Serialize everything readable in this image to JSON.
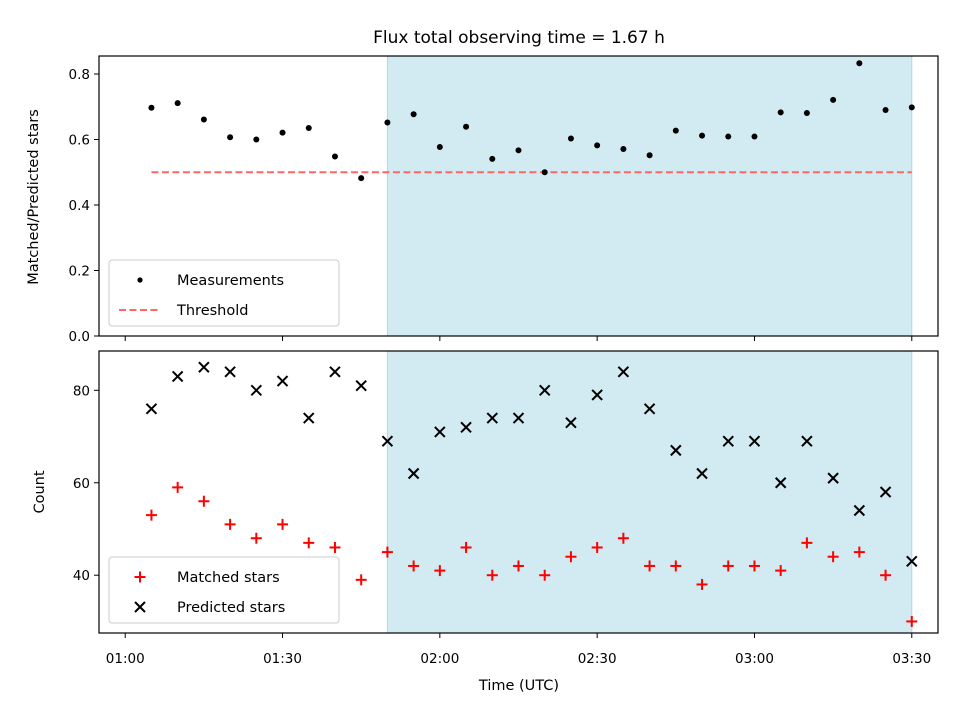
{
  "chart_data": [
    {
      "type": "scatter",
      "title": "Flux total observing time = 1.67 h",
      "xlabel": "",
      "ylabel": "Matched/Predicted stars",
      "ylim": [
        0,
        0.855
      ],
      "yticks": [
        "0.0",
        "0.2",
        "0.4",
        "0.6",
        "0.8"
      ],
      "ytick_values": [
        0,
        0.2,
        0.4,
        0.6,
        0.8
      ],
      "xlim_minutes": [
        55,
        215
      ],
      "shaded_span_minutes": [
        110,
        210
      ],
      "shade_color": "#add8e6",
      "legend": {
        "placement": "lower-left",
        "entries": [
          "Measurements",
          "Threshold"
        ]
      },
      "threshold": {
        "name": "Threshold",
        "value": 0.5,
        "x_range_minutes": [
          65,
          210
        ],
        "color": "#ff6666",
        "style": "dashed"
      },
      "series": [
        {
          "name": "Measurements",
          "marker": "dot",
          "color": "#000000",
          "x_minutes": [
            65,
            70,
            75,
            80,
            85,
            90,
            95,
            100,
            105,
            110,
            115,
            120,
            125,
            130,
            135,
            140,
            145,
            150,
            155,
            160,
            165,
            170,
            175,
            180,
            185,
            190,
            195,
            200,
            205,
            210
          ],
          "values": [
            0.697,
            0.711,
            0.661,
            0.607,
            0.6,
            0.621,
            0.635,
            0.548,
            0.482,
            0.652,
            0.677,
            0.577,
            0.639,
            0.541,
            0.567,
            0.5,
            0.603,
            0.582,
            0.571,
            0.552,
            0.627,
            0.612,
            0.609,
            0.609,
            0.683,
            0.681,
            0.721,
            0.833,
            0.69,
            0.698
          ]
        }
      ]
    },
    {
      "type": "scatter",
      "title": "",
      "xlabel": "Time (UTC)",
      "ylabel": "Count",
      "ylim": [
        27.5,
        88.5
      ],
      "yticks": [
        "40",
        "60",
        "80"
      ],
      "ytick_values": [
        40,
        60,
        80
      ],
      "xlim_minutes": [
        55,
        215
      ],
      "xticks": [
        "01:00",
        "01:30",
        "02:00",
        "02:30",
        "03:00",
        "03:30"
      ],
      "xtick_minutes": [
        60,
        90,
        120,
        150,
        180,
        210
      ],
      "shaded_span_minutes": [
        110,
        210
      ],
      "shade_color": "#add8e6",
      "legend": {
        "placement": "lower-left",
        "entries": [
          "Matched stars",
          "Predicted stars"
        ]
      },
      "series": [
        {
          "name": "Matched stars",
          "marker": "plus",
          "color": "#ff0000",
          "x_minutes": [
            65,
            70,
            75,
            80,
            85,
            90,
            95,
            100,
            105,
            110,
            115,
            120,
            125,
            130,
            135,
            140,
            145,
            150,
            155,
            160,
            165,
            170,
            175,
            180,
            185,
            190,
            195,
            200,
            205,
            210
          ],
          "values": [
            53,
            59,
            56,
            51,
            48,
            51,
            47,
            46,
            39,
            45,
            42,
            41,
            46,
            40,
            42,
            40,
            44,
            46,
            48,
            42,
            42,
            38,
            42,
            42,
            41,
            47,
            44,
            45,
            40,
            30
          ]
        },
        {
          "name": "Predicted stars",
          "marker": "x",
          "color": "#000000",
          "x_minutes": [
            65,
            70,
            75,
            80,
            85,
            90,
            95,
            100,
            105,
            110,
            115,
            120,
            125,
            130,
            135,
            140,
            145,
            150,
            155,
            160,
            165,
            170,
            175,
            180,
            185,
            190,
            195,
            200,
            205,
            210
          ],
          "values": [
            76,
            83,
            85,
            84,
            80,
            82,
            74,
            84,
            81,
            69,
            62,
            71,
            72,
            74,
            74,
            80,
            73,
            79,
            84,
            76,
            67,
            62,
            69,
            69,
            60,
            69,
            61,
            54,
            58,
            43
          ]
        }
      ]
    }
  ]
}
